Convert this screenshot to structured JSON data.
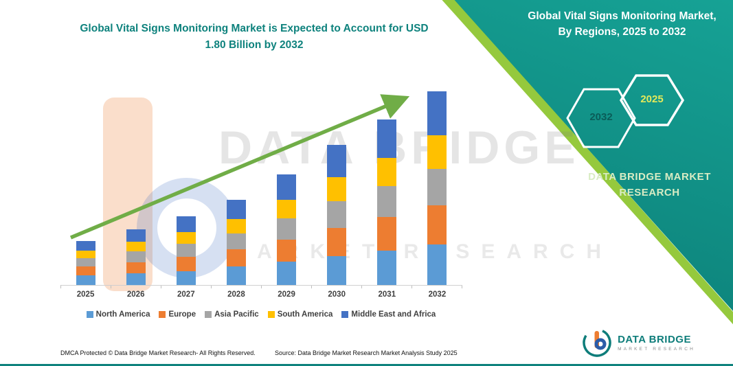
{
  "chart_data": {
    "type": "bar",
    "stacked": true,
    "title": "Global Vital Signs Monitoring Market is Expected to Account for USD 1.80 Billion by 2032",
    "unit": "USD Billion",
    "xlabel": "",
    "ylabel": "",
    "ylim": [
      0,
      1.9
    ],
    "legend_position": "bottom",
    "trend_arrow": "upward",
    "categories": [
      "2025",
      "2026",
      "2027",
      "2028",
      "2029",
      "2030",
      "2031",
      "2032"
    ],
    "series": [
      {
        "name": "North America",
        "color": "#5B9BD5",
        "values": [
          0.09,
          0.11,
          0.13,
          0.17,
          0.22,
          0.27,
          0.32,
          0.38
        ]
      },
      {
        "name": "Europe",
        "color": "#ED7D31",
        "values": [
          0.08,
          0.1,
          0.13,
          0.16,
          0.2,
          0.26,
          0.31,
          0.36
        ]
      },
      {
        "name": "Asia Pacific",
        "color": "#A5A5A5",
        "values": [
          0.08,
          0.1,
          0.12,
          0.15,
          0.2,
          0.25,
          0.29,
          0.34
        ]
      },
      {
        "name": "South America",
        "color": "#FFC000",
        "values": [
          0.07,
          0.09,
          0.11,
          0.13,
          0.17,
          0.22,
          0.26,
          0.31
        ]
      },
      {
        "name": "Middle East and Africa",
        "color": "#4472C4",
        "values": [
          0.09,
          0.12,
          0.15,
          0.18,
          0.24,
          0.3,
          0.36,
          0.41
        ]
      }
    ],
    "totals": [
      0.41,
      0.52,
      0.64,
      0.79,
      1.03,
      1.3,
      1.54,
      1.8
    ]
  },
  "band": {
    "title": "Global Vital Signs Monitoring Market, By Regions, 2025 to 2032",
    "hex_back_label": "2032",
    "hex_front_label": "2025",
    "brand_text": "DATA BRIDGE MARKET RESEARCH"
  },
  "watermark": {
    "title": "DATA BRIDGE",
    "subtitle": "MARKET RESEARCH"
  },
  "footer": {
    "dmca": "DMCA Protected © Data Bridge Market Research-  All Rights Reserved.",
    "source": "Source: Data Bridge Market Research  Market Analysis Study 2025"
  },
  "logo": {
    "name": "DATA BRIDGE",
    "subtitle": "MARKET RESEARCH"
  },
  "colors": {
    "title_teal": "#0E827D",
    "band_teal": "#0D837B",
    "accent_green": "#95C93D",
    "arrow_green": "#70AD47"
  }
}
